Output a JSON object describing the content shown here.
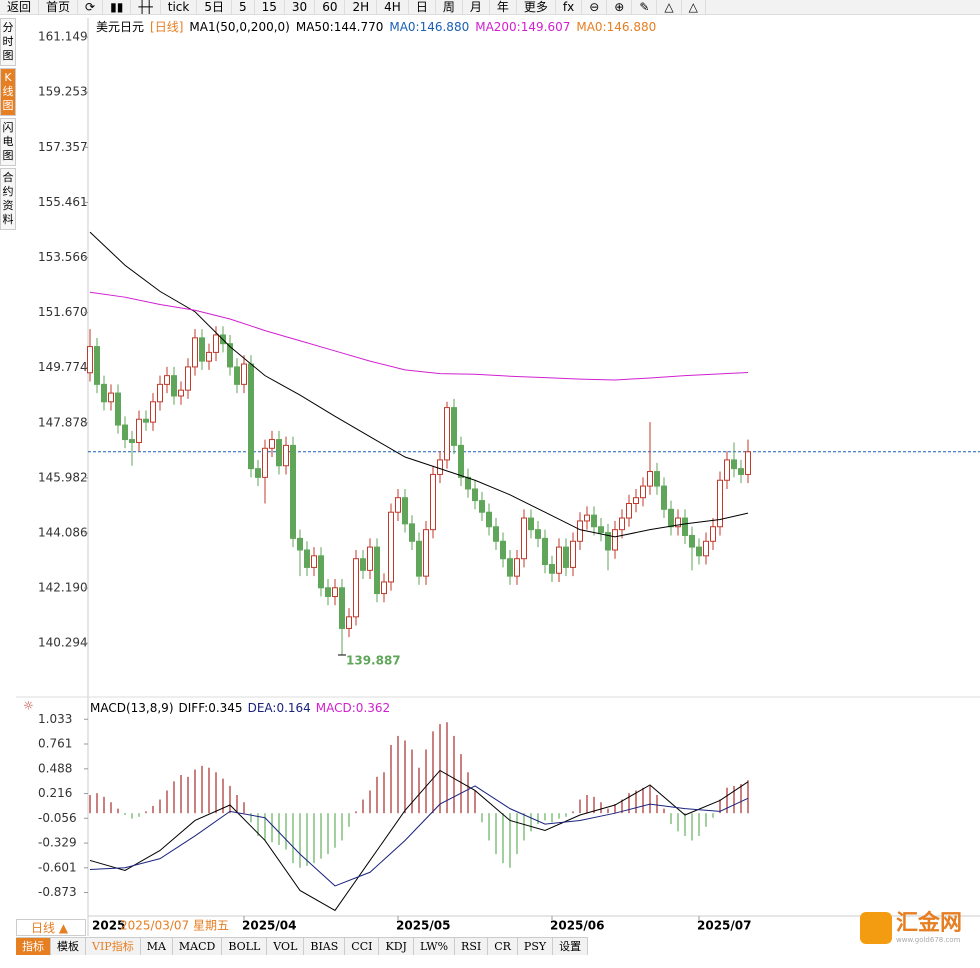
{
  "toolbar": {
    "back": "返回",
    "home": "首页",
    "tick": "tick",
    "periods": [
      "5日",
      "5",
      "15",
      "30",
      "60",
      "2H",
      "4H",
      "日",
      "周",
      "月",
      "年"
    ],
    "more": "更多"
  },
  "side_tabs": [
    "分时图",
    "K线图",
    "闪电图",
    "合约资料"
  ],
  "chart_data": [
    {
      "type": "candlestick",
      "title": "美元日元",
      "period": "[日线]",
      "legend": [
        "MA1(50,0,200,0)",
        "MA50:144.770",
        "MA0:146.880",
        "MA200:149.607",
        "MA0:146.880"
      ],
      "ylim": [
        138.51,
        161.67
      ],
      "yticks": [
        161.149,
        159.253,
        157.357,
        155.461,
        153.566,
        {
          "value": 151.67,
          "label": "151.670"
        },
        149.774,
        147.878,
        145.982,
        144.086,
        {
          "value": 142.19,
          "label": "142.190"
        },
        140.294
      ],
      "open": [
        149.6,
        150.5,
        149.2,
        148.6,
        148.9,
        147.8,
        147.3,
        147.2,
        148.0,
        147.9,
        148.6,
        149.2,
        149.5,
        148.8,
        149.0,
        149.8,
        150.8,
        150.0,
        150.3,
        150.9,
        150.6,
        149.8,
        149.2,
        149.9,
        146.3,
        146.0,
        147.0,
        147.3,
        146.4,
        147.1,
        143.9,
        143.5,
        142.9,
        143.3,
        142.2,
        141.9,
        142.2,
        140.8,
        141.2,
        143.2,
        142.8,
        143.6,
        142.0,
        142.4,
        144.8,
        145.3,
        144.4,
        143.8,
        142.6,
        144.2,
        146.1,
        146.6,
        148.4,
        147.1,
        146.0,
        145.6,
        145.2,
        144.8,
        144.3,
        143.8,
        143.2,
        142.6,
        143.2,
        144.6,
        144.2,
        143.9,
        143.0,
        142.7,
        143.6,
        142.9,
        143.8,
        144.5,
        144.7,
        144.3,
        144.1,
        143.5,
        144.2,
        144.6,
        145.1,
        145.3,
        145.7,
        146.2,
        145.7,
        144.9,
        144.3,
        144.6,
        144.0,
        143.6,
        143.3,
        143.8,
        144.3,
        145.9,
        146.6,
        146.3,
        146.1
      ],
      "high": [
        151.1,
        150.8,
        149.5,
        149.2,
        149.2,
        148.1,
        147.6,
        148.3,
        148.3,
        148.9,
        149.5,
        149.8,
        149.8,
        149.3,
        150.1,
        151.1,
        151.1,
        150.6,
        151.2,
        151.2,
        150.9,
        150.1,
        150.2,
        150.2,
        146.6,
        147.3,
        147.6,
        147.6,
        147.4,
        147.4,
        144.2,
        143.8,
        143.6,
        143.6,
        142.5,
        142.5,
        142.5,
        141.5,
        143.5,
        143.5,
        143.9,
        143.9,
        142.7,
        145.1,
        145.6,
        145.6,
        144.7,
        144.1,
        144.5,
        146.4,
        146.9,
        148.6,
        148.7,
        147.4,
        146.3,
        145.9,
        145.5,
        145.1,
        144.6,
        144.1,
        143.5,
        143.5,
        144.9,
        144.9,
        144.5,
        144.2,
        143.3,
        143.9,
        143.9,
        144.1,
        144.8,
        145.0,
        145.0,
        144.6,
        144.4,
        144.5,
        144.9,
        145.4,
        145.6,
        146.0,
        147.9,
        146.5,
        146.0,
        145.2,
        144.9,
        144.9,
        144.3,
        143.9,
        144.1,
        144.6,
        146.2,
        146.9,
        147.2,
        146.6,
        147.3
      ],
      "low": [
        149.3,
        148.9,
        148.3,
        148.3,
        147.5,
        147.0,
        146.4,
        146.9,
        147.6,
        147.6,
        148.3,
        148.9,
        148.5,
        148.5,
        148.7,
        149.5,
        149.7,
        149.7,
        150.0,
        150.3,
        149.5,
        148.9,
        148.9,
        146.0,
        145.7,
        145.1,
        146.7,
        146.1,
        146.1,
        143.6,
        142.6,
        142.6,
        142.6,
        141.9,
        141.6,
        141.6,
        139.887,
        140.5,
        140.9,
        142.5,
        142.5,
        141.7,
        141.7,
        142.1,
        144.5,
        144.1,
        143.5,
        142.3,
        142.3,
        143.9,
        145.8,
        146.3,
        146.8,
        145.7,
        145.3,
        144.9,
        144.5,
        144.0,
        143.5,
        142.9,
        142.3,
        142.3,
        142.9,
        143.9,
        143.6,
        142.7,
        142.4,
        142.4,
        142.6,
        142.6,
        143.5,
        144.2,
        144.0,
        143.8,
        142.8,
        143.2,
        143.9,
        144.3,
        144.8,
        145.0,
        145.4,
        145.4,
        144.6,
        144.0,
        144.0,
        143.7,
        142.8,
        143.0,
        143.0,
        143.5,
        144.0,
        145.6,
        146.0,
        145.8,
        145.8
      ],
      "close": [
        150.5,
        149.2,
        148.6,
        148.9,
        147.8,
        147.3,
        147.2,
        148.0,
        147.9,
        148.6,
        149.2,
        149.5,
        148.8,
        149.0,
        149.8,
        150.8,
        150.0,
        150.3,
        150.9,
        150.6,
        149.8,
        149.2,
        149.9,
        146.3,
        146.0,
        147.0,
        147.3,
        146.4,
        147.1,
        143.9,
        143.5,
        142.9,
        143.3,
        142.2,
        141.9,
        142.2,
        140.8,
        141.2,
        143.2,
        142.8,
        143.6,
        142.0,
        142.4,
        144.8,
        145.3,
        144.4,
        143.8,
        142.6,
        144.2,
        146.1,
        146.6,
        148.4,
        147.1,
        146.0,
        145.6,
        145.2,
        144.8,
        144.3,
        143.8,
        143.2,
        142.6,
        143.2,
        144.6,
        144.2,
        143.9,
        143.0,
        142.7,
        143.6,
        142.9,
        143.8,
        144.5,
        144.7,
        144.3,
        144.1,
        143.5,
        144.2,
        144.6,
        145.1,
        145.3,
        145.7,
        146.2,
        145.7,
        144.9,
        144.3,
        144.6,
        144.0,
        143.6,
        143.3,
        143.8,
        144.3,
        145.9,
        146.6,
        146.3,
        146.1,
        146.88
      ],
      "up_color": "#c0392b",
      "down_color": "#5fa65a",
      "lines": [
        {
          "color": "#000000",
          "x": [
            0,
            5,
            10,
            15,
            20,
            25,
            30,
            35,
            40,
            45,
            50,
            55,
            60,
            65,
            70,
            75,
            80,
            85,
            90,
            94
          ],
          "values": [
            154.44,
            153.3,
            152.4,
            151.7,
            150.5,
            149.5,
            148.83,
            148.1,
            147.4,
            146.7,
            146.3,
            145.9,
            145.4,
            144.8,
            144.2,
            143.95,
            144.2,
            144.4,
            144.55,
            144.77
          ]
        },
        {
          "color": "#d020d0",
          "x": [
            0,
            5,
            10,
            15,
            20,
            25,
            30,
            35,
            40,
            45,
            50,
            55,
            60,
            65,
            70,
            75,
            80,
            85,
            90,
            94
          ],
          "values": [
            152.37,
            152.2,
            151.95,
            151.75,
            151.45,
            151.05,
            150.7,
            150.35,
            150.0,
            149.7,
            149.57,
            149.55,
            149.48,
            149.43,
            149.38,
            149.35,
            149.42,
            149.5,
            149.56,
            149.607
          ]
        }
      ],
      "last_price": 146.88,
      "low_marker": {
        "index": 36,
        "value": 139.887
      }
    },
    {
      "type": "macd",
      "legend": [
        "MACD(13,8,9)",
        "DIFF:0.345",
        "DEA:0.164",
        "MACD:0.362"
      ],
      "ylim": [
        -1.12,
        1.08
      ],
      "yticks": [
        1.033,
        0.761,
        0.488,
        0.216,
        -0.056,
        -0.329,
        -0.601,
        -0.873
      ],
      "values": [
        0.2,
        0.22,
        0.18,
        0.12,
        0.05,
        -0.02,
        -0.06,
        -0.04,
        0.02,
        0.08,
        0.15,
        0.25,
        0.35,
        0.42,
        0.4,
        0.48,
        0.52,
        0.5,
        0.45,
        0.38,
        0.3,
        0.2,
        0.12,
        -0.1,
        -0.25,
        -0.3,
        -0.32,
        -0.35,
        -0.4,
        -0.55,
        -0.6,
        -0.58,
        -0.55,
        -0.5,
        -0.45,
        -0.38,
        -0.3,
        -0.15,
        0.02,
        0.15,
        0.25,
        0.4,
        0.45,
        0.75,
        0.85,
        0.8,
        0.7,
        0.5,
        0.7,
        0.9,
        0.98,
        1.0,
        0.85,
        0.65,
        0.45,
        0.25,
        -0.1,
        -0.3,
        -0.45,
        -0.55,
        -0.6,
        -0.45,
        -0.3,
        -0.2,
        -0.12,
        -0.08,
        -0.1,
        -0.06,
        -0.04,
        0.02,
        0.15,
        0.2,
        0.18,
        0.12,
        0.05,
        0.1,
        0.15,
        0.22,
        0.25,
        0.28,
        0.3,
        0.2,
        0.05,
        -0.12,
        -0.2,
        -0.25,
        -0.3,
        -0.25,
        -0.15,
        -0.05,
        0.15,
        0.28,
        0.3,
        0.32,
        0.362
      ],
      "up_color": "#b03a3a",
      "down_color": "#6fb56a",
      "lines": [
        {
          "color": "#000000",
          "x": [
            0,
            5,
            10,
            15,
            20,
            25,
            30,
            35,
            40,
            45,
            50,
            55,
            60,
            65,
            70,
            75,
            80,
            85,
            90,
            94
          ],
          "values": [
            -0.52,
            -0.63,
            -0.41,
            -0.08,
            0.09,
            -0.3,
            -0.85,
            -1.07,
            -0.52,
            0.03,
            0.47,
            0.25,
            -0.08,
            -0.19,
            -0.02,
            0.09,
            0.31,
            -0.02,
            0.14,
            0.345
          ]
        },
        {
          "color": "#1a237e",
          "x": [
            0,
            5,
            10,
            15,
            20,
            25,
            30,
            35,
            40,
            45,
            50,
            55,
            60,
            65,
            70,
            75,
            80,
            85,
            90,
            94
          ],
          "values": [
            -0.62,
            -0.6,
            -0.5,
            -0.25,
            0.02,
            -0.05,
            -0.45,
            -0.8,
            -0.65,
            -0.3,
            0.1,
            0.3,
            0.05,
            -0.12,
            -0.08,
            0.0,
            0.1,
            0.05,
            0.02,
            0.164
          ]
        }
      ]
    }
  ],
  "date_axis": {
    "start": "2025",
    "cursor": "2025/03/07 星期五",
    "labels": [
      {
        "value": 22,
        "label": "2025/04"
      },
      {
        "value": 44,
        "label": "2025/05"
      },
      {
        "value": 66,
        "label": "2025/06"
      },
      {
        "value": 87,
        "label": "2025/07"
      }
    ]
  },
  "bottom": {
    "period": "日线 ▲",
    "tabs": [
      "指标",
      "模板",
      "VIP指标",
      "MA",
      "MACD",
      "BOLL",
      "VOL",
      "BIAS",
      "CCI",
      "KDJ",
      "LW%",
      "RSI",
      "CR",
      "PSY",
      "设置"
    ]
  },
  "logo": {
    "name": "汇金网",
    "url": "www.gold678.com"
  }
}
